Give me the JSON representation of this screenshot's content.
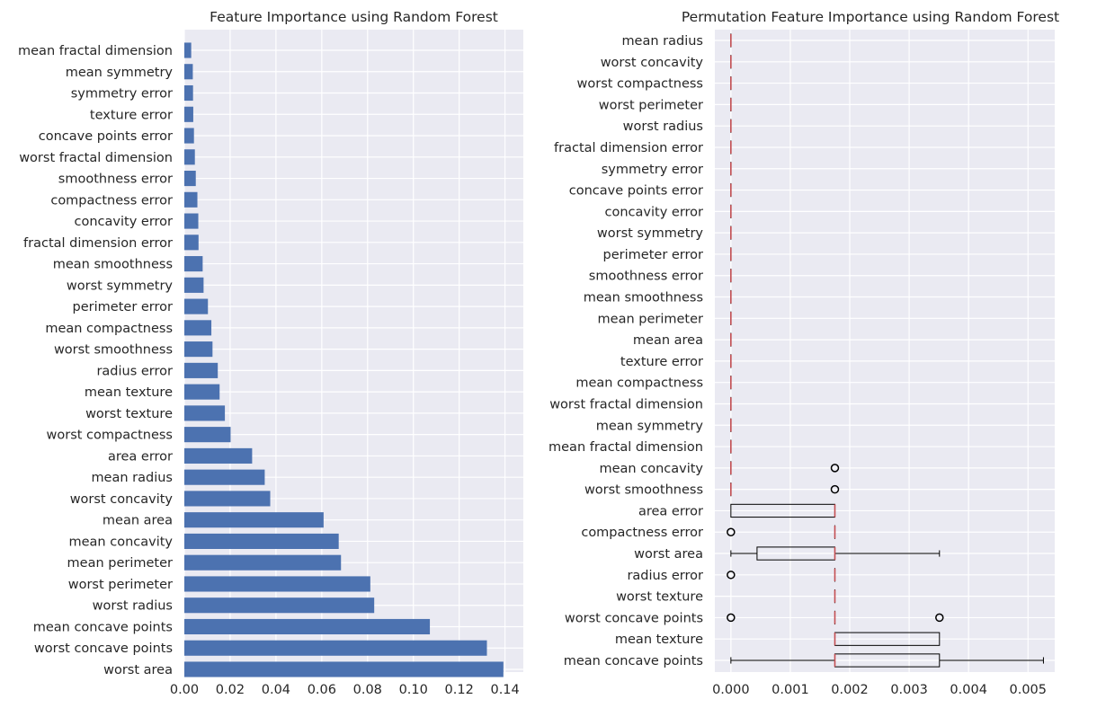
{
  "chart_data": [
    {
      "type": "bar",
      "orientation": "horizontal",
      "title": "Feature Importance using Random Forest",
      "xlabel": "",
      "ylabel": "",
      "xlim": [
        0,
        0.148
      ],
      "xticks": [
        "0.00",
        "0.02",
        "0.04",
        "0.06",
        "0.08",
        "0.10",
        "0.12",
        "0.14"
      ],
      "xtick_values": [
        0,
        0.02,
        0.04,
        0.06,
        0.08,
        0.1,
        0.12,
        0.14
      ],
      "grid": true,
      "bar_color": "#4c72b0",
      "categories": [
        "mean fractal dimension",
        "mean symmetry",
        "symmetry error",
        "texture error",
        "concave points error",
        "worst fractal dimension",
        "smoothness error",
        "compactness error",
        "concavity error",
        "fractal dimension error",
        "mean smoothness",
        "worst symmetry",
        "perimeter error",
        "mean compactness",
        "worst smoothness",
        "radius error",
        "mean texture",
        "worst texture",
        "worst compactness",
        "area error",
        "mean radius",
        "worst concavity",
        "mean area",
        "mean concavity",
        "mean perimeter",
        "worst perimeter",
        "worst radius",
        "mean concave points",
        "worst concave points",
        "worst area"
      ],
      "values": [
        0.003,
        0.0037,
        0.0038,
        0.0039,
        0.0042,
        0.0046,
        0.005,
        0.0057,
        0.0061,
        0.0062,
        0.008,
        0.0084,
        0.0103,
        0.0118,
        0.0123,
        0.0146,
        0.0154,
        0.0177,
        0.0202,
        0.0296,
        0.0351,
        0.0375,
        0.0608,
        0.0674,
        0.0684,
        0.0812,
        0.0829,
        0.1072,
        0.1321,
        0.1393
      ]
    },
    {
      "type": "box",
      "orientation": "horizontal",
      "title": "Permutation Feature Importance using Random Forest",
      "xlabel": "",
      "ylabel": "",
      "xlim": [
        -0.00027,
        0.00545
      ],
      "xticks": [
        "0.000",
        "0.001",
        "0.002",
        "0.003",
        "0.004",
        "0.005"
      ],
      "xtick_values": [
        0,
        0.001,
        0.002,
        0.003,
        0.004,
        0.005
      ],
      "grid": true,
      "box_color": "#000000",
      "median_color": "#c44e52",
      "categories": [
        "mean radius",
        "worst concavity",
        "worst compactness",
        "worst perimeter",
        "worst radius",
        "fractal dimension error",
        "symmetry error",
        "concave points error",
        "concavity error",
        "worst symmetry",
        "perimeter error",
        "smoothness error",
        "mean smoothness",
        "mean perimeter",
        "mean area",
        "texture error",
        "mean compactness",
        "worst fractal dimension",
        "mean symmetry",
        "mean fractal dimension",
        "mean concavity",
        "worst smoothness",
        "area error",
        "compactness error",
        "worst area",
        "radius error",
        "worst texture",
        "worst concave points",
        "mean texture",
        "mean concave points"
      ],
      "boxes": [
        {
          "whislo": 0,
          "q1": 0,
          "med": 0,
          "q3": 0,
          "whishi": 0,
          "fliers": []
        },
        {
          "whislo": 0,
          "q1": 0,
          "med": 0,
          "q3": 0,
          "whishi": 0,
          "fliers": []
        },
        {
          "whislo": 0,
          "q1": 0,
          "med": 0,
          "q3": 0,
          "whishi": 0,
          "fliers": []
        },
        {
          "whislo": 0,
          "q1": 0,
          "med": 0,
          "q3": 0,
          "whishi": 0,
          "fliers": []
        },
        {
          "whislo": 0,
          "q1": 0,
          "med": 0,
          "q3": 0,
          "whishi": 0,
          "fliers": []
        },
        {
          "whislo": 0,
          "q1": 0,
          "med": 0,
          "q3": 0,
          "whishi": 0,
          "fliers": []
        },
        {
          "whislo": 0,
          "q1": 0,
          "med": 0,
          "q3": 0,
          "whishi": 0,
          "fliers": []
        },
        {
          "whislo": 0,
          "q1": 0,
          "med": 0,
          "q3": 0,
          "whishi": 0,
          "fliers": []
        },
        {
          "whislo": 0,
          "q1": 0,
          "med": 0,
          "q3": 0,
          "whishi": 0,
          "fliers": []
        },
        {
          "whislo": 0,
          "q1": 0,
          "med": 0,
          "q3": 0,
          "whishi": 0,
          "fliers": []
        },
        {
          "whislo": 0,
          "q1": 0,
          "med": 0,
          "q3": 0,
          "whishi": 0,
          "fliers": []
        },
        {
          "whislo": 0,
          "q1": 0,
          "med": 0,
          "q3": 0,
          "whishi": 0,
          "fliers": []
        },
        {
          "whislo": 0,
          "q1": 0,
          "med": 0,
          "q3": 0,
          "whishi": 0,
          "fliers": []
        },
        {
          "whislo": 0,
          "q1": 0,
          "med": 0,
          "q3": 0,
          "whishi": 0,
          "fliers": []
        },
        {
          "whislo": 0,
          "q1": 0,
          "med": 0,
          "q3": 0,
          "whishi": 0,
          "fliers": []
        },
        {
          "whislo": 0,
          "q1": 0,
          "med": 0,
          "q3": 0,
          "whishi": 0,
          "fliers": []
        },
        {
          "whislo": 0,
          "q1": 0,
          "med": 0,
          "q3": 0,
          "whishi": 0,
          "fliers": []
        },
        {
          "whislo": 0,
          "q1": 0,
          "med": 0,
          "q3": 0,
          "whishi": 0,
          "fliers": []
        },
        {
          "whislo": 0,
          "q1": 0,
          "med": 0,
          "q3": 0,
          "whishi": 0,
          "fliers": []
        },
        {
          "whislo": 0,
          "q1": 0,
          "med": 0,
          "q3": 0,
          "whishi": 0,
          "fliers": []
        },
        {
          "whislo": 0,
          "q1": 0,
          "med": 0,
          "q3": 0,
          "whishi": 0,
          "fliers": [
            0.00175
          ]
        },
        {
          "whislo": 0,
          "q1": 0,
          "med": 0,
          "q3": 0,
          "whishi": 0,
          "fliers": [
            0.00175
          ]
        },
        {
          "whislo": 0,
          "q1": 0,
          "med": 0.00175,
          "q3": 0.00175,
          "whishi": 0.00175,
          "fliers": []
        },
        {
          "whislo": 0.00175,
          "q1": 0.00175,
          "med": 0.00175,
          "q3": 0.00175,
          "whishi": 0.00175,
          "fliers": [
            0
          ]
        },
        {
          "whislo": 0,
          "q1": 0.00044,
          "med": 0.00175,
          "q3": 0.00175,
          "whishi": 0.00351,
          "fliers": []
        },
        {
          "whislo": 0.00175,
          "q1": 0.00175,
          "med": 0.00175,
          "q3": 0.00175,
          "whishi": 0.00175,
          "fliers": [
            0
          ]
        },
        {
          "whislo": 0.00175,
          "q1": 0.00175,
          "med": 0.00175,
          "q3": 0.00175,
          "whishi": 0.00175,
          "fliers": []
        },
        {
          "whislo": 0.00175,
          "q1": 0.00175,
          "med": 0.00175,
          "q3": 0.00175,
          "whishi": 0.00175,
          "fliers": [
            0,
            0.00351
          ]
        },
        {
          "whislo": 0.00175,
          "q1": 0.00175,
          "med": 0.00175,
          "q3": 0.00351,
          "whishi": 0.00351,
          "fliers": []
        },
        {
          "whislo": 0,
          "q1": 0.00175,
          "med": 0.00175,
          "q3": 0.00351,
          "whishi": 0.00526,
          "fliers": []
        }
      ]
    }
  ]
}
